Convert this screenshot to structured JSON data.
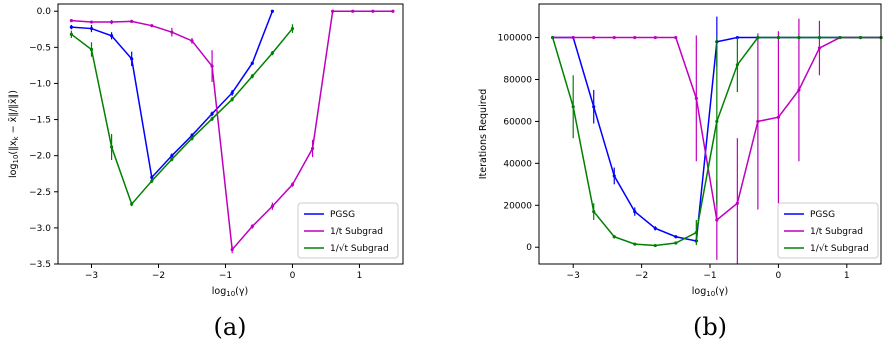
{
  "chart_data": [
    {
      "type": "line",
      "panel_label": "(a)",
      "xlabel": "log10(γ)",
      "ylabel": "log10(‖xk − x̄‖/‖x̄‖)",
      "xlim": [
        -3.5,
        1.65
      ],
      "ylim": [
        -3.5,
        0.1
      ],
      "xticks": [
        -3,
        -2,
        -1,
        0,
        1
      ],
      "xtick_labels": [
        "−3",
        "−2",
        "−1",
        "0",
        "1"
      ],
      "yticks": [
        0.0,
        -0.5,
        -1.0,
        -1.5,
        -2.0,
        -2.5,
        -3.0,
        -3.5
      ],
      "ytick_labels": [
        "0.0",
        "−0.5",
        "−1.0",
        "−1.5",
        "−2.0",
        "−2.5",
        "−3.0",
        "−3.5"
      ],
      "legend_position": "lower right",
      "series": [
        {
          "name": "PGSG",
          "color": "#0000ff",
          "x": [
            -3.3,
            -3.0,
            -2.7,
            -2.4,
            -2.1,
            -1.8,
            -1.5,
            -1.2,
            -0.9,
            -0.6,
            -0.3
          ],
          "y": [
            -0.22,
            -0.24,
            -0.34,
            -0.66,
            -2.3,
            -2.0,
            -1.72,
            -1.42,
            -1.13,
            -0.72,
            0.0
          ],
          "err": [
            0.03,
            0.05,
            0.05,
            0.1,
            0.03,
            0.03,
            0.03,
            0.03,
            0.04,
            0.02,
            0.0
          ]
        },
        {
          "name": "1/t Subgrad",
          "color": "#bf00bf",
          "x": [
            -3.3,
            -3.0,
            -2.7,
            -2.4,
            -2.1,
            -1.8,
            -1.5,
            -1.2,
            -0.9,
            -0.6,
            -0.3,
            0.0,
            0.3,
            0.6,
            0.9,
            1.2,
            1.5
          ],
          "y": [
            -0.13,
            -0.15,
            -0.15,
            -0.14,
            -0.2,
            -0.29,
            -0.41,
            -0.76,
            -3.3,
            -2.98,
            -2.7,
            -2.4,
            -1.9,
            0.0,
            0.0,
            0.0,
            0.0
          ],
          "err": [
            0.02,
            0.02,
            0.03,
            0.02,
            0.02,
            0.06,
            0.04,
            0.22,
            0.05,
            0.03,
            0.05,
            0.03,
            0.12,
            0.0,
            0.0,
            0.0,
            0.0
          ]
        },
        {
          "name": "1/√t Subgrad",
          "color": "#008000",
          "x": [
            -3.3,
            -3.0,
            -2.7,
            -2.4,
            -2.1,
            -1.8,
            -1.5,
            -1.2,
            -0.9,
            -0.6,
            -0.3,
            0.0
          ],
          "y": [
            -0.32,
            -0.53,
            -1.88,
            -2.67,
            -2.35,
            -2.05,
            -1.76,
            -1.49,
            -1.22,
            -0.9,
            -0.58,
            -0.24
          ],
          "err": [
            0.05,
            0.1,
            0.18,
            0.03,
            0.03,
            0.03,
            0.03,
            0.03,
            0.03,
            0.03,
            0.03,
            0.06
          ]
        }
      ]
    },
    {
      "type": "line",
      "panel_label": "(b)",
      "xlabel": "log10(γ)",
      "ylabel": "Iterations Required",
      "xlim": [
        -3.5,
        1.5
      ],
      "ylim": [
        -8000,
        116000
      ],
      "xticks": [
        -3,
        -2,
        -1,
        0,
        1
      ],
      "xtick_labels": [
        "−3",
        "−2",
        "−1",
        "0",
        "1"
      ],
      "yticks": [
        0,
        20000,
        40000,
        60000,
        80000,
        100000
      ],
      "ytick_labels": [
        "0",
        "20000",
        "40000",
        "60000",
        "80000",
        "100000"
      ],
      "legend_position": "lower right",
      "series": [
        {
          "name": "PGSG",
          "color": "#0000ff",
          "x": [
            -3.3,
            -3.0,
            -2.7,
            -2.4,
            -2.1,
            -1.8,
            -1.5,
            -1.2,
            -0.9,
            -0.6,
            -0.3,
            0.0,
            0.3,
            0.6,
            0.9,
            1.2,
            1.5
          ],
          "y": [
            100000,
            100000,
            67000,
            34000,
            17000,
            9000,
            5000,
            3000,
            98000,
            100000,
            100000,
            100000,
            100000,
            100000,
            100000,
            100000,
            100000
          ],
          "err": [
            0,
            0,
            8000,
            4000,
            2000,
            1000,
            600,
            1000,
            12000,
            0,
            0,
            0,
            0,
            0,
            0,
            0,
            0
          ]
        },
        {
          "name": "1/t Subgrad",
          "color": "#bf00bf",
          "x": [
            -3.3,
            -3.0,
            -2.7,
            -2.4,
            -2.1,
            -1.8,
            -1.5,
            -1.2,
            -0.9,
            -0.6,
            -0.3,
            0.0,
            0.3,
            0.6,
            0.9,
            1.2,
            1.5
          ],
          "y": [
            100000,
            100000,
            100000,
            100000,
            100000,
            100000,
            100000,
            71000,
            13000,
            21000,
            60000,
            62000,
            75000,
            95000,
            100000,
            100000,
            100000
          ],
          "err": [
            0,
            0,
            0,
            0,
            0,
            0,
            0,
            30000,
            19000,
            31000,
            42000,
            41000,
            34000,
            13000,
            0,
            0,
            0
          ]
        },
        {
          "name": "1/√t Subgrad",
          "color": "#008000",
          "x": [
            -3.3,
            -3.0,
            -2.7,
            -2.4,
            -2.1,
            -1.8,
            -1.5,
            -1.2,
            -0.9,
            -0.6,
            -0.3,
            0.0,
            0.3,
            0.6,
            0.9,
            1.2,
            1.5
          ],
          "y": [
            100000,
            67000,
            17000,
            5000,
            1500,
            800,
            2000,
            7000,
            60000,
            87000,
            100000,
            100000,
            100000,
            100000,
            100000,
            100000,
            100000
          ],
          "err": [
            0,
            15000,
            4000,
            800,
            300,
            200,
            500,
            6000,
            40000,
            13000,
            0,
            0,
            0,
            0,
            0,
            0,
            0
          ]
        }
      ]
    }
  ]
}
